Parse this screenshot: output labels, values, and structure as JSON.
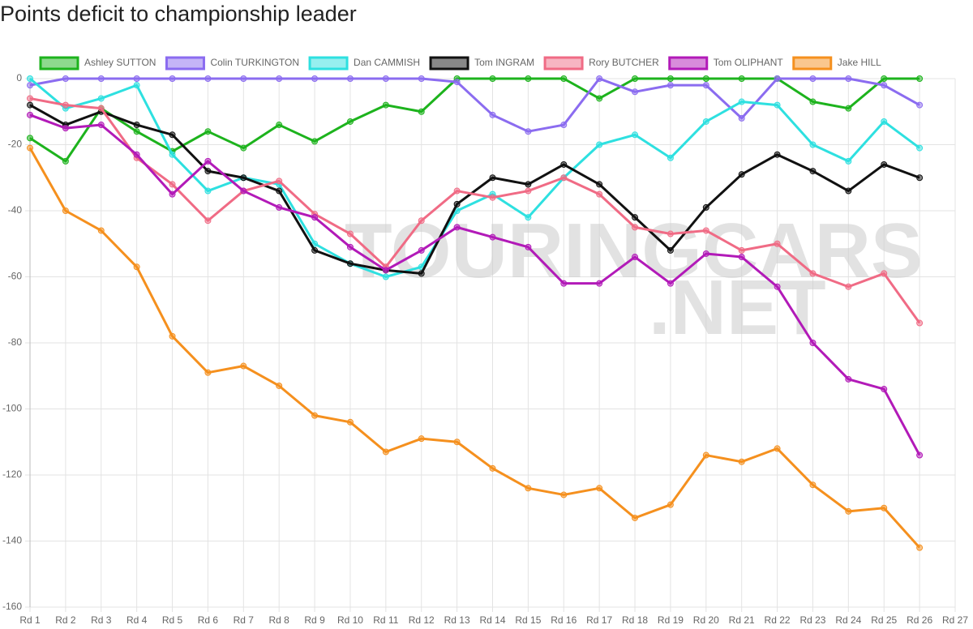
{
  "chart_data": {
    "type": "line",
    "title": "Points deficit to championship leader",
    "watermark": [
      "TOURINGCARS",
      ".NET"
    ],
    "categories": [
      "Rd 1",
      "Rd 2",
      "Rd 3",
      "Rd 4",
      "Rd 5",
      "Rd 6",
      "Rd 7",
      "Rd 8",
      "Rd 9",
      "Rd 10",
      "Rd 11",
      "Rd 12",
      "Rd 13",
      "Rd 14",
      "Rd 15",
      "Rd 16",
      "Rd 17",
      "Rd 18",
      "Rd 19",
      "Rd 20",
      "Rd 21",
      "Rd 22",
      "Rd 23",
      "Rd 24",
      "Rd 25",
      "Rd 26",
      "Rd 27"
    ],
    "ylim": [
      -160,
      0
    ],
    "yticks": [
      0,
      -20,
      -40,
      -60,
      -80,
      -100,
      -120,
      -140,
      -160
    ],
    "grid": true,
    "legend": "top",
    "series": [
      {
        "name": "Ashley SUTTON",
        "color": "#1db31d",
        "values": [
          -18,
          -25,
          -9,
          -16,
          -22,
          -16,
          -21,
          -14,
          -19,
          -13,
          -8,
          -10,
          0,
          0,
          0,
          0,
          -6,
          0,
          0,
          0,
          0,
          0,
          -7,
          -9,
          0,
          0,
          null
        ]
      },
      {
        "name": "Colin TURKINGTON",
        "color": "#8b6cf0",
        "values": [
          -2,
          0,
          0,
          0,
          0,
          0,
          0,
          0,
          0,
          0,
          0,
          0,
          -1,
          -11,
          -16,
          -14,
          0,
          -4,
          -2,
          -2,
          -12,
          0,
          0,
          0,
          -2,
          -8,
          null
        ]
      },
      {
        "name": "Dan CAMMISH",
        "color": "#2ee0e0",
        "values": [
          0,
          -9,
          -6,
          -2,
          -23,
          -34,
          -30,
          -32,
          -50,
          -56,
          -60,
          -57,
          -40,
          -35,
          -42,
          -30,
          -20,
          -17,
          -24,
          -13,
          -7,
          -8,
          -20,
          -25,
          -13,
          -21,
          null
        ]
      },
      {
        "name": "Tom INGRAM",
        "color": "#111111",
        "values": [
          -8,
          -14,
          -10,
          -14,
          -17,
          -28,
          -30,
          -34,
          -52,
          -56,
          -58,
          -59,
          -38,
          -30,
          -32,
          -26,
          -32,
          -42,
          -52,
          -39,
          -29,
          -23,
          -28,
          -34,
          -26,
          -30,
          null
        ]
      },
      {
        "name": "Rory BUTCHER",
        "color": "#f06b85",
        "values": [
          -6,
          -8,
          -9,
          -24,
          -32,
          -43,
          -34,
          -31,
          -41,
          -47,
          -57,
          -43,
          -34,
          -36,
          -34,
          -30,
          -35,
          -45,
          -47,
          -46,
          -52,
          -50,
          -59,
          -63,
          -59,
          -74,
          null
        ]
      },
      {
        "name": "Tom OLIPHANT",
        "color": "#b21ab8",
        "values": [
          -11,
          -15,
          -14,
          -23,
          -35,
          -25,
          -34,
          -39,
          -42,
          -51,
          -58,
          -52,
          -45,
          -48,
          -51,
          -62,
          -62,
          -54,
          -62,
          -53,
          -54,
          -63,
          -80,
          -91,
          -94,
          -114,
          null
        ]
      },
      {
        "name": "Jake HILL",
        "color": "#f5901e",
        "values": [
          -21,
          -40,
          -46,
          -57,
          -78,
          -89,
          -87,
          -93,
          -102,
          -104,
          -113,
          -109,
          -110,
          -118,
          -124,
          -126,
          -124,
          -133,
          -129,
          -114,
          -116,
          -112,
          -123,
          -131,
          -130,
          -142,
          null
        ]
      }
    ]
  }
}
